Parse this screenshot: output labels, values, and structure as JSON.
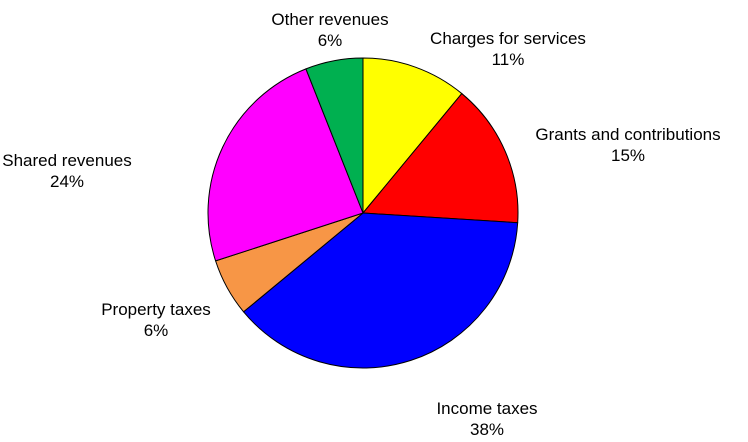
{
  "chart_data": {
    "type": "pie",
    "title": "",
    "legend": "none",
    "slices": [
      {
        "label": "Charges for services",
        "percent_label": "11%",
        "value": 11,
        "color": "#ffff00"
      },
      {
        "label": "Grants and contributions",
        "percent_label": "15%",
        "value": 15,
        "color": "#ff0000"
      },
      {
        "label": "Income taxes",
        "percent_label": "38%",
        "value": 38,
        "color": "#0000ff"
      },
      {
        "label": "Property taxes",
        "percent_label": "6%",
        "value": 6,
        "color": "#f79646"
      },
      {
        "label": "Shared revenues",
        "percent_label": "24%",
        "value": 24,
        "color": "#ff00ff"
      },
      {
        "label": "Other revenues",
        "percent_label": "6%",
        "value": 6,
        "color": "#00b050"
      }
    ]
  }
}
